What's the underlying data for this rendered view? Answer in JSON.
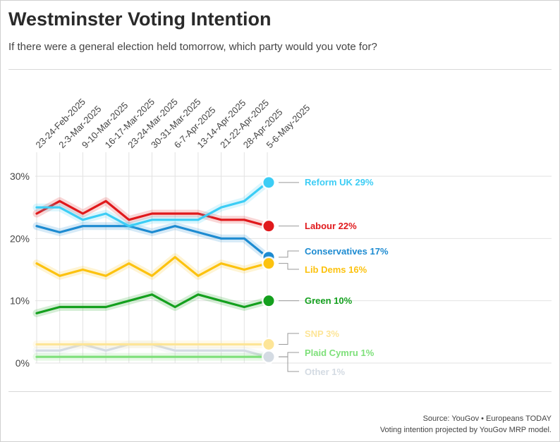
{
  "header": {
    "title": "Westminster Voting Intention",
    "subtitle": "If there were a general election held tomorrow, which party would you vote for?"
  },
  "footer": {
    "source": "Source: YouGov • Europeans TODAY",
    "note": "Voting intention projected by YouGov MRP model."
  },
  "chart_data": {
    "type": "line",
    "title": "Westminster Voting Intention",
    "subtitle": "If there were a general election held tomorrow, which party would you vote for?",
    "categories": [
      "23-24-Feb-2025",
      "2-3-Mar-2025",
      "9-10-Mar-2025",
      "16-17-Mar-2025",
      "23-24-Mar-2025",
      "30-31-Mar-2025",
      "6-7-Apr-2025",
      "13-14-Apr-2025",
      "21-22-Apr-2025",
      "28-Apr-2025",
      "5-6-May-2025"
    ],
    "ylim": [
      0,
      30
    ],
    "yticks": [
      0,
      10,
      20,
      30
    ],
    "ytick_labels": [
      "0%",
      "10%",
      "20%",
      "30%"
    ],
    "grid": true,
    "series": [
      {
        "name": "Reform UK",
        "label": "Reform UK 29%",
        "color": "#3ccdf5",
        "values": [
          25,
          25,
          23,
          24,
          22,
          23,
          23,
          23,
          25,
          26,
          29
        ]
      },
      {
        "name": "Labour",
        "label": "Labour 22%",
        "color": "#e0191c",
        "values": [
          24,
          26,
          24,
          26,
          23,
          24,
          24,
          24,
          23,
          23,
          22
        ]
      },
      {
        "name": "Conservatives",
        "label": "Conservatives 17%",
        "color": "#1d8bd1",
        "values": [
          22,
          21,
          22,
          22,
          22,
          21,
          22,
          21,
          20,
          20,
          17
        ]
      },
      {
        "name": "Lib Dems",
        "label": "Lib Dems 16%",
        "color": "#fcc20f",
        "values": [
          16,
          14,
          15,
          14,
          16,
          14,
          17,
          14,
          16,
          15,
          16
        ]
      },
      {
        "name": "Green",
        "label": "Green 10%",
        "color": "#14a01e",
        "values": [
          8,
          9,
          9,
          9,
          10,
          11,
          9,
          11,
          10,
          9,
          10
        ]
      },
      {
        "name": "SNP",
        "label": "SNP 3%",
        "color": "#fde597",
        "values": [
          3,
          3,
          3,
          3,
          3,
          3,
          3,
          3,
          3,
          3,
          3
        ]
      },
      {
        "name": "Plaid Cymru",
        "label": "Plaid Cymru 1%",
        "color": "#7ee07a",
        "values": [
          1,
          1,
          1,
          1,
          1,
          1,
          1,
          1,
          1,
          1,
          1
        ]
      },
      {
        "name": "Other",
        "label": "Other 1%",
        "color": "#d4dbe3",
        "values": [
          2,
          2,
          3,
          2,
          3,
          3,
          2,
          2,
          2,
          2,
          1
        ]
      }
    ]
  }
}
